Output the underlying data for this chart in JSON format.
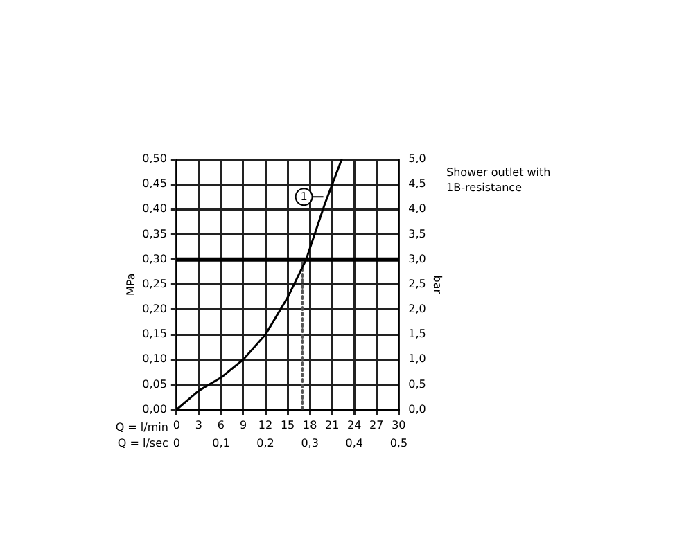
{
  "chart_data": {
    "type": "line",
    "ylabel": "MPa",
    "y2label": "bar",
    "xlabel": "Q = l/min",
    "x2label": "Q = l/sec",
    "series": [
      {
        "color": "#000000",
        "x": [
          0,
          3,
          6,
          9,
          12,
          15,
          17.5,
          20,
          22.3
        ],
        "values": [
          0,
          0.038,
          0.064,
          0.1,
          0.15,
          0.224,
          0.3,
          0.41,
          0.5
        ]
      },
      {
        "color": "#555555",
        "line_style": "dotted",
        "x": [
          17,
          17
        ],
        "values": [
          0,
          0.3
        ]
      }
    ],
    "xlim": [
      0,
      30
    ],
    "xticks": [
      0,
      3,
      6,
      9,
      12,
      15,
      18,
      21,
      24,
      27,
      30
    ],
    "x2lim": [
      0,
      0.5
    ],
    "x2ticks": [
      {
        "value": 0,
        "label": "0"
      },
      {
        "value": 0.1,
        "label": "0,1"
      },
      {
        "value": 0.2,
        "label": "0,2"
      },
      {
        "value": 0.3,
        "label": "0,3"
      },
      {
        "value": 0.4,
        "label": "0,4"
      },
      {
        "value": 0.5,
        "label": "0,5"
      }
    ],
    "ylim": [
      0,
      0.5
    ],
    "yticks": [
      {
        "value": 0,
        "label": "0,00"
      },
      {
        "value": 0.05,
        "label": "0,05"
      },
      {
        "value": 0.1,
        "label": "0,10"
      },
      {
        "value": 0.15,
        "label": "0,15"
      },
      {
        "value": 0.2,
        "label": "0,20"
      },
      {
        "value": 0.25,
        "label": "0,25"
      },
      {
        "value": 0.3,
        "label": "0,30"
      },
      {
        "value": 0.35,
        "label": "0,35"
      },
      {
        "value": 0.4,
        "label": "0,40"
      },
      {
        "value": 0.45,
        "label": "0,45"
      },
      {
        "value": 0.5,
        "label": "0,50"
      }
    ],
    "y2lim": [
      0,
      5
    ],
    "y2ticks": [
      {
        "value": 0,
        "label": "0,0"
      },
      {
        "value": 0.5,
        "label": "0,5"
      },
      {
        "value": 1,
        "label": "1,0"
      },
      {
        "value": 1.5,
        "label": "1,5"
      },
      {
        "value": 2,
        "label": "2,0"
      },
      {
        "value": 2.5,
        "label": "2,5"
      },
      {
        "value": 3,
        "label": "3,0"
      },
      {
        "value": 3.5,
        "label": "3,5"
      },
      {
        "value": 4,
        "label": "4,0"
      },
      {
        "value": 4.5,
        "label": "4,5"
      },
      {
        "value": 5,
        "label": "5,0"
      }
    ],
    "ref_lines": [
      {
        "axis": "y",
        "value": 0.3,
        "color": "#000000"
      }
    ],
    "annotations": [
      {
        "text": "1",
        "x": 17.2,
        "y": 0.425
      },
      "Shower outlet with 1B-resistance"
    ],
    "grid": true,
    "legend": false,
    "marker": "none"
  }
}
